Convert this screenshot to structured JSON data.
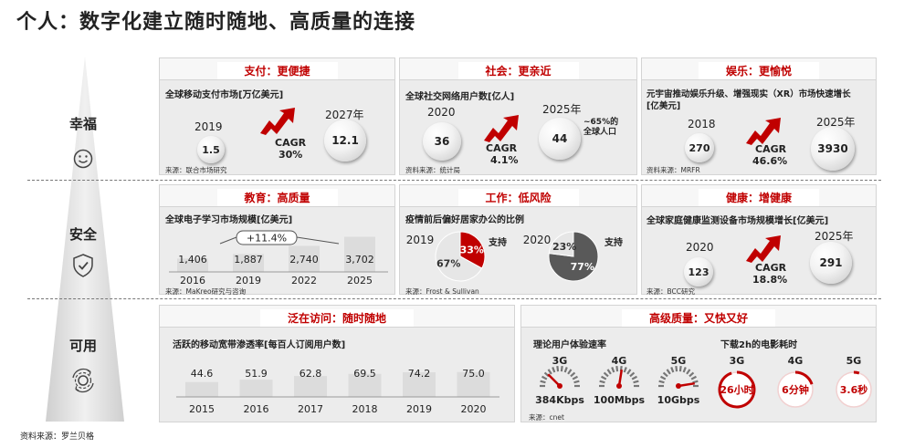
{
  "page_title": "个人：数字化建立随时随地、高质量的连接",
  "footer_source": "资料来源：罗兰贝格",
  "rows": [
    {
      "label": "幸福",
      "icon": "smiley-icon"
    },
    {
      "label": "安全",
      "icon": "shield-check-icon"
    },
    {
      "label": "可用",
      "icon": "gear-cycle-icon"
    }
  ],
  "panels": {
    "payment": {
      "header": "支付：更便捷",
      "subtitle": "全球移动支付市场[万亿美元]",
      "start_year": "2019",
      "start_value": "1.5",
      "end_year": "2027年",
      "end_value": "12.1",
      "cagr_label": "CAGR",
      "cagr_value": "30%",
      "source": "来源：联合市场研究"
    },
    "social": {
      "header": "社会：更亲近",
      "subtitle": "全球社交网络用户数[亿人]",
      "start_year": "2020",
      "start_value": "36",
      "end_year": "2025年",
      "end_value": "44",
      "cagr_label": "CAGR",
      "cagr_value": "4.1%",
      "note_line1": "~65%的",
      "note_line2": "全球人口",
      "source": "资料来源：统计局"
    },
    "entertainment": {
      "header": "娱乐：更愉悦",
      "subtitle_line1": "元宇宙推动娱乐升级、增强现实（XR）市场快速增长",
      "subtitle_line2": "[亿美元]",
      "start_year": "2018",
      "start_value": "270",
      "end_year": "2025年",
      "end_value": "3930",
      "cagr_label": "CAGR",
      "cagr_value": "46.6%",
      "source": "资料来源：MRFR"
    },
    "education": {
      "header": "教育：高质量",
      "subtitle": "全球电子学习市场规模[亿美元]",
      "growth_badge": "+11.4%",
      "source": "来源：MaKreo研究与咨询"
    },
    "work": {
      "header": "工作：低风险",
      "subtitle": "疫情前后偏好居家办公的比例",
      "support_label": "支持",
      "source": "来源：Frost & Sullivan"
    },
    "health": {
      "header": "健康：增健康",
      "subtitle": "全球家庭健康监测设备市场规模增长[亿美元]",
      "start_year": "2020",
      "start_value": "123",
      "end_year": "2025年",
      "end_value": "291",
      "cagr_label": "CAGR",
      "cagr_value": "18.8%",
      "source": "来源：BCC研究"
    },
    "access": {
      "header": "泛在访问：随时随地",
      "subtitle": "活跃的移动宽带渗透率[每百人订阅用户数]"
    },
    "quality": {
      "header": "高级质量：又快又好",
      "speed_title": "理论用户体验速率",
      "download_title": "下载2h的电影耗时",
      "source": "来源：cnet",
      "speeds": [
        {
          "gen": "3G",
          "value": "384Kbps",
          "fill": 0.25
        },
        {
          "gen": "4G",
          "value": "100Mbps",
          "fill": 0.55
        },
        {
          "gen": "5G",
          "value": "10Gbps",
          "fill": 0.95
        }
      ],
      "downloads": [
        {
          "gen": "3G",
          "value": "26小时",
          "fill": 0.95
        },
        {
          "gen": "4G",
          "value": "6分钟",
          "fill": 0.2
        },
        {
          "gen": "5G",
          "value": "3.6秒",
          "fill": 0.05
        }
      ]
    }
  },
  "chart_data": [
    {
      "type": "bar",
      "title": "全球电子学习市场规模[亿美元]",
      "categories": [
        "2016",
        "2019",
        "2022",
        "2025"
      ],
      "values": [
        1406,
        1887,
        2740,
        3702
      ],
      "value_labels": [
        "1,406",
        "1,887",
        "2,740",
        "3,702"
      ],
      "ylim": [
        0,
        25000
      ]
    },
    {
      "type": "pie",
      "title": "疫情前后偏好居家办公的比例",
      "pies": [
        {
          "year": "2019",
          "slices": [
            {
              "name": "支持",
              "value": 33,
              "label": "33%"
            },
            {
              "name": "",
              "value": 67,
              "label": "67%"
            }
          ],
          "colors": [
            "#c00000",
            "#e6e6e6"
          ]
        },
        {
          "year": "2020",
          "slices": [
            {
              "name": "支持",
              "value": 77,
              "label": "77%"
            },
            {
              "name": "",
              "value": 23,
              "label": "23%"
            }
          ],
          "colors": [
            "#595959",
            "#e6e6e6"
          ]
        }
      ]
    },
    {
      "type": "bar",
      "title": "活跃的移动宽带渗透率[每百人订阅用户数]",
      "categories": [
        "2015",
        "2016",
        "2017",
        "2018",
        "2019",
        "2020"
      ],
      "values": [
        44.6,
        51.9,
        62.8,
        69.5,
        74.2,
        75.0
      ],
      "value_labels": [
        "44.6",
        "51.9",
        "62.8",
        "69.5",
        "74.2",
        "75.0"
      ],
      "ylim": [
        0,
        330
      ]
    }
  ],
  "colors": {
    "accent": "#c00000",
    "panel": "#ececec",
    "bar": "#dcdcdc"
  }
}
